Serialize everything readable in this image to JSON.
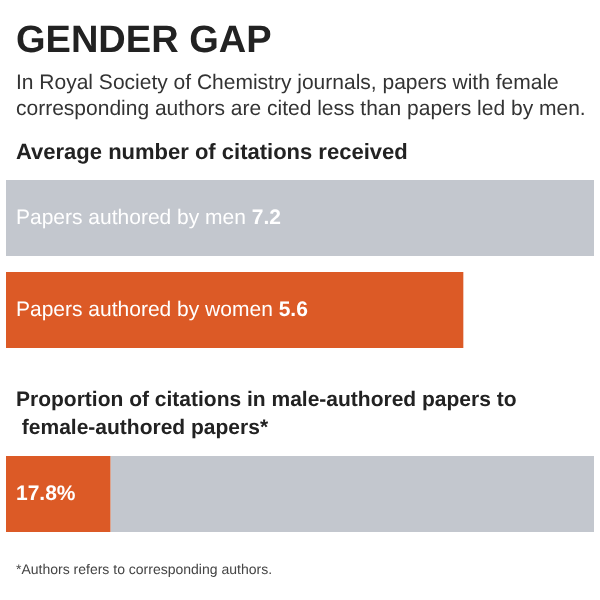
{
  "chart_data": [
    {
      "type": "bar",
      "orientation": "horizontal",
      "title": "GENDER GAP",
      "subtitle": "In Royal Society of Chemistry journals, papers with female corresponding authors are cited less than papers led by men.",
      "xlabel": "Average number of citations received",
      "categories": [
        "Papers authored by men",
        "Papers authored by women"
      ],
      "values": [
        7.2,
        5.6
      ],
      "colors": [
        "#c3c7ce",
        "#dc5a26"
      ],
      "data_labels": true
    },
    {
      "type": "bar",
      "orientation": "horizontal",
      "stacked": true,
      "title": "Proportion of citations in male-authored papers to female-authored papers*",
      "categories": [
        null
      ],
      "series": [
        {
          "color": "#dc5a26",
          "values": [
            17.8
          ],
          "value_labels": [
            "17.8%"
          ]
        },
        {
          "color": "#c3c7ce",
          "values": [
            82.2
          ],
          "value_labels": [
            null
          ]
        }
      ],
      "annotations": [
        "*Authors refers to corresponding authors."
      ]
    }
  ]
}
